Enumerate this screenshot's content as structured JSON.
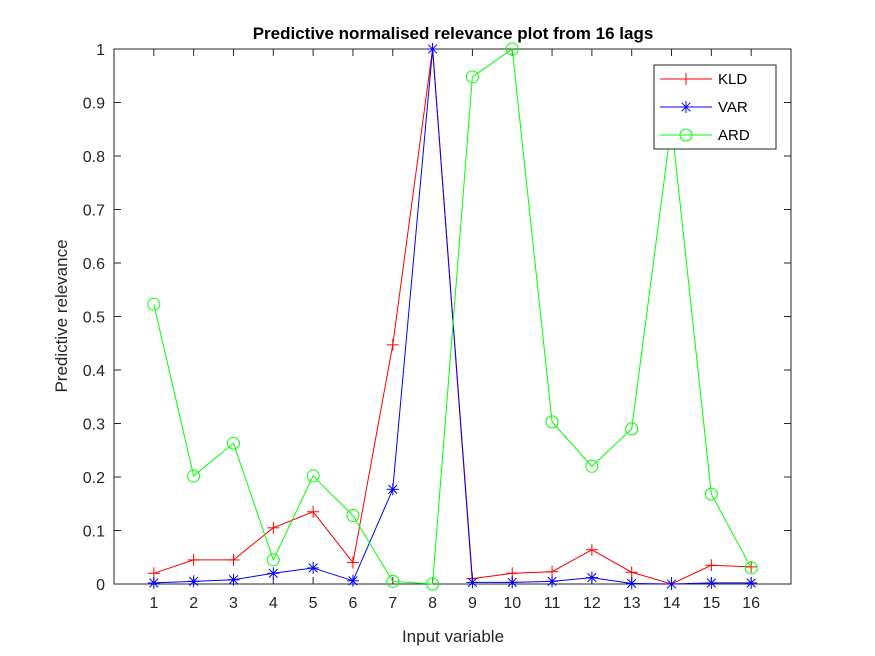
{
  "chart_data": {
    "type": "line",
    "title": "Predictive normalised relevance plot from 16 lags",
    "xlabel": "Input variable",
    "ylabel": "Predictive relevance",
    "x": [
      1,
      2,
      3,
      4,
      5,
      6,
      7,
      8,
      9,
      10,
      11,
      12,
      13,
      14,
      15,
      16
    ],
    "xlim": [
      0,
      17
    ],
    "ylim": [
      0,
      1
    ],
    "xticks": [
      "1",
      "2",
      "3",
      "4",
      "5",
      "6",
      "7",
      "8",
      "9",
      "10",
      "11",
      "12",
      "13",
      "14",
      "15",
      "16"
    ],
    "yticks": [
      "0",
      "0.1",
      "0.2",
      "0.3",
      "0.4",
      "0.5",
      "0.6",
      "0.7",
      "0.8",
      "0.9",
      "1"
    ],
    "grid": false,
    "legend_position": "top-right",
    "series": [
      {
        "name": "KLD",
        "color": "#ff0000",
        "marker": "plus",
        "values": [
          0.02,
          0.045,
          0.045,
          0.105,
          0.135,
          0.04,
          0.447,
          1.0,
          0.01,
          0.02,
          0.023,
          0.064,
          0.022,
          0.0,
          0.035,
          0.032
        ]
      },
      {
        "name": "VAR",
        "color": "#0000ff",
        "marker": "asterisk",
        "values": [
          0.002,
          0.005,
          0.008,
          0.02,
          0.03,
          0.006,
          0.177,
          1.0,
          0.003,
          0.003,
          0.005,
          0.012,
          0.001,
          0.0,
          0.002,
          0.002
        ]
      },
      {
        "name": "ARD",
        "color": "#00ff00",
        "marker": "circle",
        "values": [
          0.523,
          0.202,
          0.263,
          0.045,
          0.202,
          0.128,
          0.005,
          0.0,
          0.948,
          1.0,
          0.303,
          0.22,
          0.29,
          0.86,
          0.168,
          0.03
        ]
      }
    ]
  }
}
